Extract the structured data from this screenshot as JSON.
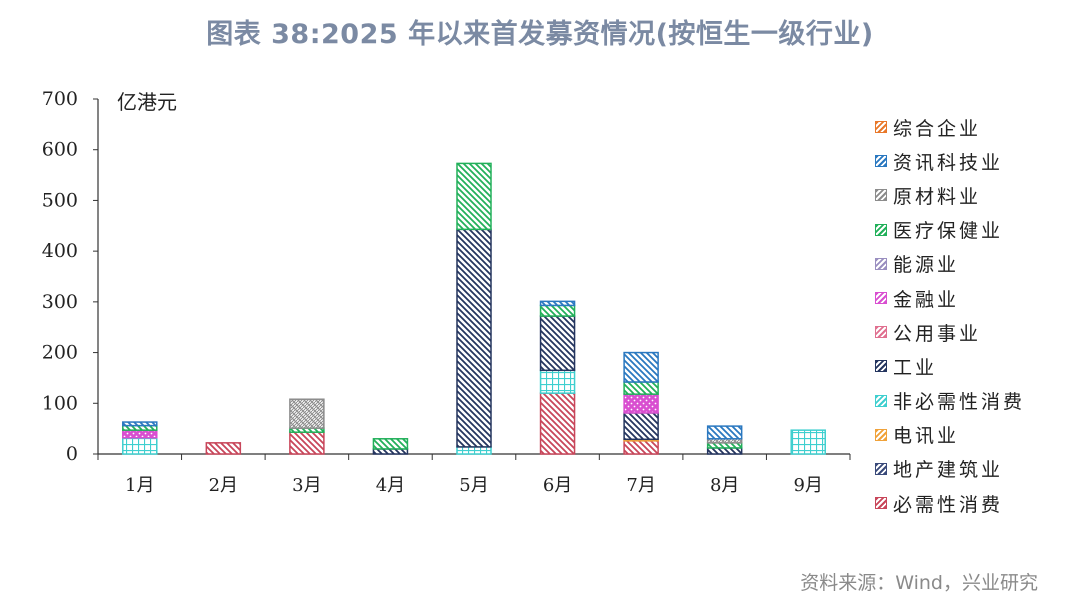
{
  "title": "图表 38:2025 年以来首发募资情况(按恒生一级行业)",
  "source": "资料来源：Wind，兴业研究",
  "chart_data": {
    "type": "bar",
    "stacked": true,
    "title": "图表 38:2025 年以来首发募资情况(按恒生一级行业)",
    "ylabel": "亿港元",
    "xlabel": "",
    "ylim": [
      0,
      700
    ],
    "yticks": [
      0,
      100,
      200,
      300,
      400,
      500,
      600,
      700
    ],
    "categories": [
      "1月",
      "2月",
      "3月",
      "4月",
      "5月",
      "6月",
      "7月",
      "8月",
      "9月"
    ],
    "legend_position": "right",
    "grid": false,
    "series": [
      {
        "name": "必需性消费",
        "color": "#c8465a",
        "pattern": "diag-back",
        "values": [
          0,
          22,
          43,
          0,
          0,
          120,
          26,
          0,
          0
        ]
      },
      {
        "name": "地产建筑业",
        "color": "#3a4a7a",
        "pattern": "diag-fwd",
        "values": [
          0,
          0,
          0,
          0,
          0,
          0,
          0,
          0,
          0
        ]
      },
      {
        "name": "电讯业",
        "color": "#f0a23a",
        "pattern": "cross",
        "values": [
          0,
          0,
          0,
          0,
          0,
          0,
          3,
          0,
          0
        ]
      },
      {
        "name": "非必需性消费",
        "color": "#3fcfcf",
        "pattern": "grid",
        "values": [
          32,
          0,
          0,
          0,
          14,
          45,
          0,
          0,
          47
        ]
      },
      {
        "name": "工业",
        "color": "#24355f",
        "pattern": "diag-back",
        "values": [
          0,
          0,
          0,
          10,
          429,
          107,
          52,
          12,
          0
        ]
      },
      {
        "name": "公用事业",
        "color": "#e07090",
        "pattern": "vertical",
        "values": [
          0,
          0,
          0,
          0,
          0,
          0,
          0,
          0,
          0
        ]
      },
      {
        "name": "金融业",
        "color": "#d94fd0",
        "pattern": "dots",
        "values": [
          15,
          0,
          0,
          0,
          0,
          0,
          37,
          0,
          0
        ]
      },
      {
        "name": "能源业",
        "color": "#9a8fc0",
        "pattern": "dot-light",
        "values": [
          0,
          0,
          0,
          0,
          0,
          0,
          0,
          0,
          0
        ]
      },
      {
        "name": "医疗保健业",
        "color": "#22b05a",
        "pattern": "diag-back",
        "values": [
          9,
          0,
          8,
          20,
          130,
          21,
          24,
          10,
          0
        ]
      },
      {
        "name": "原材料业",
        "color": "#8c8c8c",
        "pattern": "cross-dense",
        "values": [
          0,
          0,
          57,
          0,
          0,
          0,
          0,
          8,
          0
        ]
      },
      {
        "name": "资讯科技业",
        "color": "#2a78c0",
        "pattern": "diag-back",
        "values": [
          7,
          0,
          0,
          0,
          0,
          8,
          58,
          25,
          0
        ]
      },
      {
        "name": "综合企业",
        "color": "#e8782a",
        "pattern": "cross",
        "values": [
          0,
          0,
          0,
          0,
          0,
          0,
          0,
          0,
          0
        ]
      }
    ]
  },
  "legend": [
    {
      "label": "综合企业",
      "color": "#e8782a"
    },
    {
      "label": "资讯科技业",
      "color": "#2a78c0"
    },
    {
      "label": "原材料业",
      "color": "#8c8c8c"
    },
    {
      "label": "医疗保健业",
      "color": "#22b05a"
    },
    {
      "label": "能源业",
      "color": "#9a8fc0"
    },
    {
      "label": "金融业",
      "color": "#d94fd0"
    },
    {
      "label": "公用事业",
      "color": "#e07090"
    },
    {
      "label": "工业",
      "color": "#24355f"
    },
    {
      "label": "非必需性消费",
      "color": "#3fcfcf"
    },
    {
      "label": "电讯业",
      "color": "#f0a23a"
    },
    {
      "label": "地产建筑业",
      "color": "#3a4a7a"
    },
    {
      "label": "必需性消费",
      "color": "#c8465a"
    }
  ]
}
